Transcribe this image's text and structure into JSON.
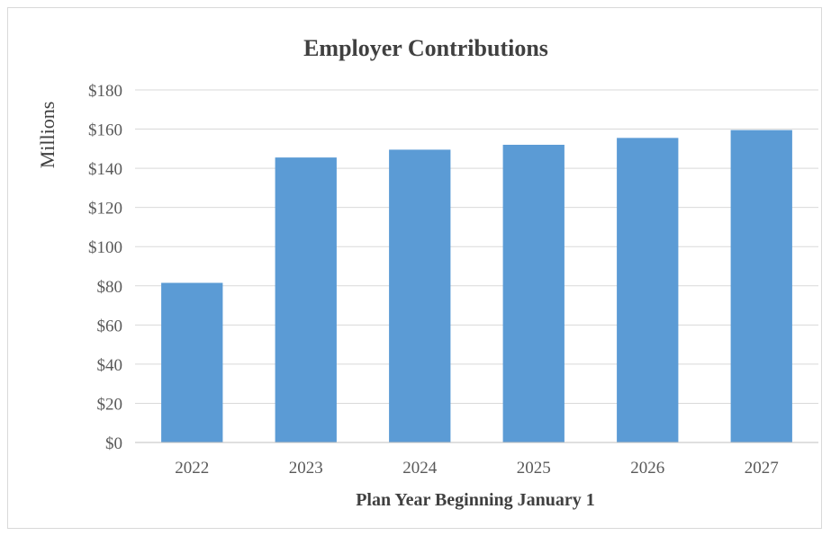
{
  "chart_data": {
    "type": "bar",
    "title": "Employer Contributions",
    "xlabel": "Plan Year Beginning January 1",
    "ylabel": "Millions",
    "categories": [
      "2022",
      "2023",
      "2024",
      "2025",
      "2026",
      "2027"
    ],
    "values": [
      81.5,
      145.5,
      149.5,
      152,
      155.5,
      159.5
    ],
    "ylim": [
      0,
      180
    ],
    "yticks": [
      0,
      20,
      40,
      60,
      80,
      100,
      120,
      140,
      160,
      180
    ],
    "ytick_labels": [
      "$0",
      "$20",
      "$40",
      "$60",
      "$80",
      "$100",
      "$120",
      "$140",
      "$160",
      "$180"
    ],
    "grid": true,
    "legend": "none",
    "bar_color": "#5b9bd5"
  }
}
